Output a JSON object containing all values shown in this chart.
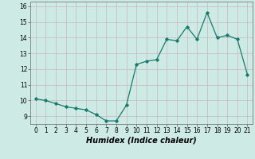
{
  "x": [
    0,
    1,
    2,
    3,
    4,
    5,
    6,
    7,
    8,
    9,
    10,
    11,
    12,
    13,
    14,
    15,
    16,
    17,
    18,
    19,
    20,
    21
  ],
  "y": [
    10.1,
    10.0,
    9.8,
    9.6,
    9.5,
    9.4,
    9.1,
    8.7,
    8.7,
    9.7,
    12.3,
    12.5,
    12.6,
    13.9,
    13.8,
    14.7,
    13.9,
    15.6,
    14.0,
    14.15,
    13.9,
    11.65
  ],
  "line_color": "#1a7a6e",
  "marker": "D",
  "marker_size": 1.8,
  "bg_color": "#cdeae5",
  "grid_color": "#c8b8ba",
  "xlabel": "Humidex (Indice chaleur)",
  "ylim": [
    8.5,
    16.3
  ],
  "xlim": [
    -0.5,
    21.5
  ],
  "yticks": [
    9,
    10,
    11,
    12,
    13,
    14,
    15,
    16
  ],
  "xticks": [
    0,
    1,
    2,
    3,
    4,
    5,
    6,
    7,
    8,
    9,
    10,
    11,
    12,
    13,
    14,
    15,
    16,
    17,
    18,
    19,
    20,
    21
  ],
  "tick_labelsize": 5.5,
  "xlabel_fontsize": 7.0,
  "linewidth": 0.9
}
